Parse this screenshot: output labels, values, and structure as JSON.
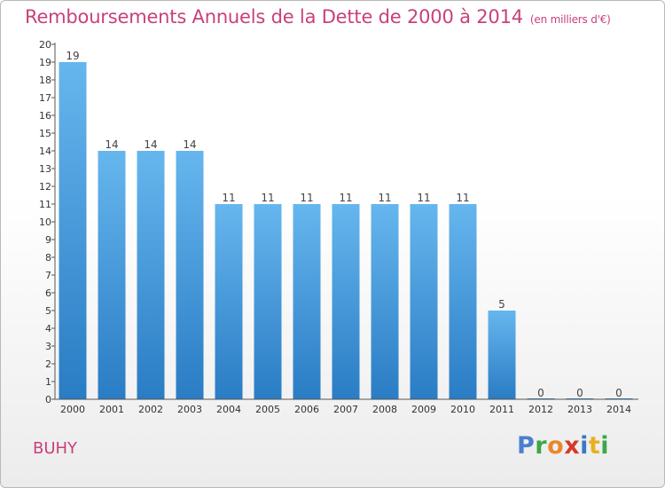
{
  "title": "Remboursements Annuels de la Dette de 2000 à 2014",
  "unit_note": "(en milliers d'€)",
  "commune": "BUHY",
  "logo": {
    "letters": [
      "P",
      "r",
      "o",
      "x",
      "i",
      "t",
      "i"
    ],
    "colors": [
      "#4a7fd0",
      "#3aa845",
      "#e9892b",
      "#d43a2a",
      "#3b78c6",
      "#e8b020",
      "#3aa845"
    ]
  },
  "colors": {
    "title": "#c8417a",
    "bar_light": "#66b6ee",
    "bar_dark": "#2a7cc4"
  },
  "chart_data": {
    "type": "bar",
    "title": "Remboursements Annuels de la Dette de 2000 à 2014",
    "subtitle": "(en milliers d'€)",
    "categories": [
      "2000",
      "2001",
      "2002",
      "2003",
      "2004",
      "2005",
      "2006",
      "2007",
      "2008",
      "2009",
      "2010",
      "2011",
      "2012",
      "2013",
      "2014"
    ],
    "values": [
      19,
      14,
      14,
      14,
      11,
      11,
      11,
      11,
      11,
      11,
      11,
      5,
      0,
      0,
      0
    ],
    "xlabel": "",
    "ylabel": "",
    "ylim": [
      0,
      20
    ],
    "yticks": [
      "0",
      "1",
      "2",
      "3",
      "4",
      "5",
      "6",
      "7",
      "8",
      "9",
      "10",
      "11",
      "12",
      "13",
      "14",
      "15",
      "16",
      "17",
      "18",
      "19",
      "20"
    ],
    "grid": false,
    "legend": "none"
  }
}
